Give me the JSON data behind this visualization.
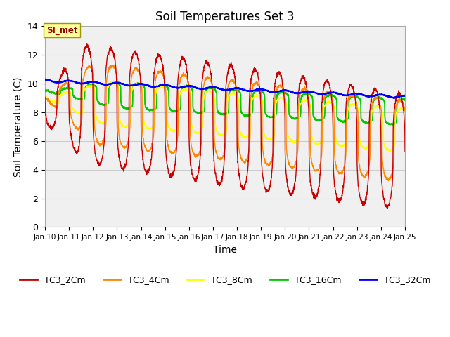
{
  "title": "Soil Temperatures Set 3",
  "xlabel": "Time",
  "ylabel": "Soil Temperature (C)",
  "ylim": [
    0,
    14
  ],
  "yticks": [
    0,
    2,
    4,
    6,
    8,
    10,
    12,
    14
  ],
  "x_start_day": 10,
  "x_end_day": 25,
  "x_tick_days": [
    10,
    11,
    12,
    13,
    14,
    15,
    16,
    17,
    18,
    19,
    20,
    21,
    22,
    23,
    24,
    25
  ],
  "series_colors": {
    "TC3_2Cm": "#cc0000",
    "TC3_4Cm": "#ff8800",
    "TC3_8Cm": "#ffff00",
    "TC3_16Cm": "#00cc00",
    "TC3_32Cm": "#0000ff"
  },
  "plot_bg_color": "#f0f0f0",
  "annotation_box_color": "#ffff99",
  "annotation_text": "SI_met",
  "legend_entries": [
    "TC3_2Cm",
    "TC3_4Cm",
    "TC3_8Cm",
    "TC3_16Cm",
    "TC3_32Cm"
  ]
}
